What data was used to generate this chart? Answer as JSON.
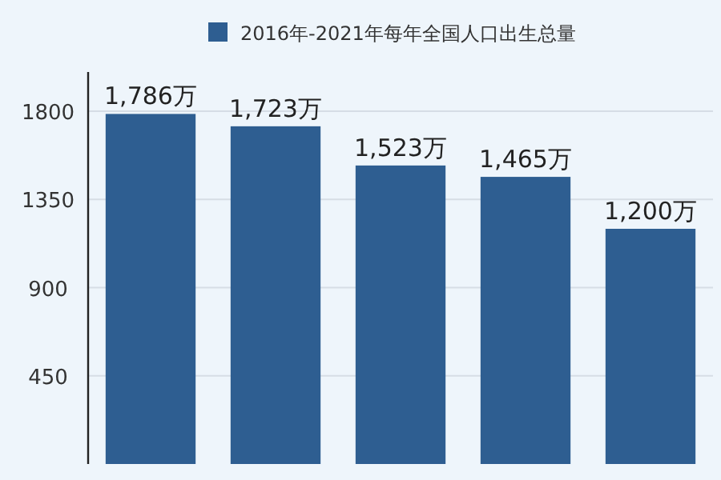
{
  "chart_data": {
    "type": "bar",
    "categories": [
      null,
      null,
      null,
      null,
      null
    ],
    "series": [
      {
        "name": "2016年-2021年每年全国人口出生总量",
        "color": "#2e5e91",
        "values": [
          1786,
          1723,
          1523,
          1465,
          1200
        ],
        "value_labels": [
          "1,786万",
          "1,723万",
          "1,523万",
          "1,465万",
          "1,200万"
        ]
      }
    ],
    "ylim": [
      0,
      2000
    ],
    "yticks": [
      450,
      900,
      1350,
      1800
    ],
    "grid": "y",
    "legend": "top"
  }
}
